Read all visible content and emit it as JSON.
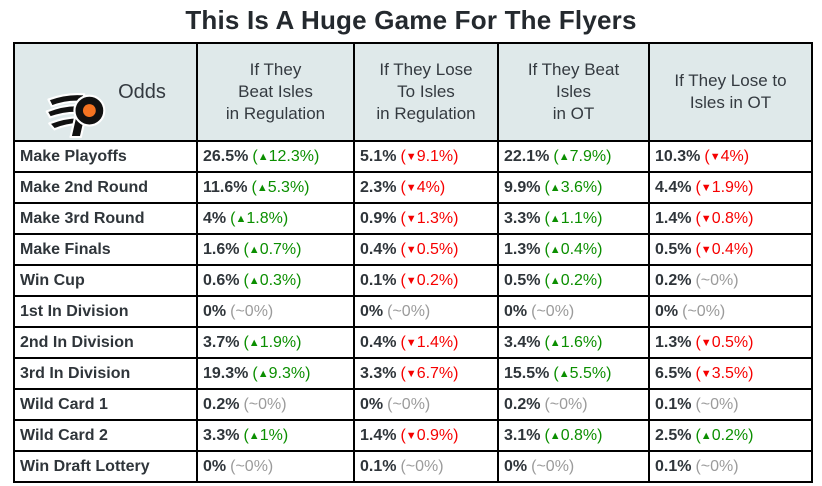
{
  "colors": {
    "header_bg": "#dfe9ea",
    "up_green": "#0b8f00",
    "down_red": "#f60000",
    "flat_gray": "#9b9b9b",
    "text_dark": "#2f353a",
    "border_black": "#000000",
    "logo_orange": "#f47321",
    "logo_black": "#111111"
  },
  "icons": {
    "up_arrow": "▲",
    "down_arrow": "▼",
    "flat_prefix": "~",
    "team_logo": "philadelphia-flyers-logo"
  },
  "chart_data": {
    "type": "table",
    "title": "This Is A Huge Game For The Flyers",
    "corner_label": "Odds",
    "columns": [
      "If They\nBeat Isles\nin Regulation",
      "If They Lose\nTo Isles\nin Regulation",
      "If They Beat\nIsles\nin OT",
      "If They Lose to\nIsles in OT"
    ],
    "rows": [
      {
        "label": "Make Playoffs",
        "cells": [
          {
            "value": "26.5%",
            "dir": "up",
            "change": "12.3%"
          },
          {
            "value": "5.1%",
            "dir": "down",
            "change": "9.1%"
          },
          {
            "value": "22.1%",
            "dir": "up",
            "change": "7.9%"
          },
          {
            "value": "10.3%",
            "dir": "down",
            "change": "4%"
          }
        ]
      },
      {
        "label": "Make 2nd Round",
        "cells": [
          {
            "value": "11.6%",
            "dir": "up",
            "change": "5.3%"
          },
          {
            "value": "2.3%",
            "dir": "down",
            "change": "4%"
          },
          {
            "value": "9.9%",
            "dir": "up",
            "change": "3.6%"
          },
          {
            "value": "4.4%",
            "dir": "down",
            "change": "1.9%"
          }
        ]
      },
      {
        "label": "Make 3rd Round",
        "cells": [
          {
            "value": "4%",
            "dir": "up",
            "change": "1.8%"
          },
          {
            "value": "0.9%",
            "dir": "down",
            "change": "1.3%"
          },
          {
            "value": "3.3%",
            "dir": "up",
            "change": "1.1%"
          },
          {
            "value": "1.4%",
            "dir": "down",
            "change": "0.8%"
          }
        ]
      },
      {
        "label": "Make Finals",
        "cells": [
          {
            "value": "1.6%",
            "dir": "up",
            "change": "0.7%"
          },
          {
            "value": "0.4%",
            "dir": "down",
            "change": "0.5%"
          },
          {
            "value": "1.3%",
            "dir": "up",
            "change": "0.4%"
          },
          {
            "value": "0.5%",
            "dir": "down",
            "change": "0.4%"
          }
        ]
      },
      {
        "label": "Win Cup",
        "cells": [
          {
            "value": "0.6%",
            "dir": "up",
            "change": "0.3%"
          },
          {
            "value": "0.1%",
            "dir": "down",
            "change": "0.2%"
          },
          {
            "value": "0.5%",
            "dir": "up",
            "change": "0.2%"
          },
          {
            "value": "0.2%",
            "dir": "flat",
            "change": "0%"
          }
        ]
      },
      {
        "label": "1st In Division",
        "cells": [
          {
            "value": "0%",
            "dir": "flat",
            "change": "0%"
          },
          {
            "value": "0%",
            "dir": "flat",
            "change": "0%"
          },
          {
            "value": "0%",
            "dir": "flat",
            "change": "0%"
          },
          {
            "value": "0%",
            "dir": "flat",
            "change": "0%"
          }
        ]
      },
      {
        "label": "2nd In Division",
        "cells": [
          {
            "value": "3.7%",
            "dir": "up",
            "change": "1.9%"
          },
          {
            "value": "0.4%",
            "dir": "down",
            "change": "1.4%"
          },
          {
            "value": "3.4%",
            "dir": "up",
            "change": "1.6%"
          },
          {
            "value": "1.3%",
            "dir": "down",
            "change": "0.5%"
          }
        ]
      },
      {
        "label": "3rd In Division",
        "cells": [
          {
            "value": "19.3%",
            "dir": "up",
            "change": "9.3%"
          },
          {
            "value": "3.3%",
            "dir": "down",
            "change": "6.7%"
          },
          {
            "value": "15.5%",
            "dir": "up",
            "change": "5.5%"
          },
          {
            "value": "6.5%",
            "dir": "down",
            "change": "3.5%"
          }
        ]
      },
      {
        "label": "Wild Card 1",
        "cells": [
          {
            "value": "0.2%",
            "dir": "flat",
            "change": "0%"
          },
          {
            "value": "0%",
            "dir": "flat",
            "change": "0%"
          },
          {
            "value": "0.2%",
            "dir": "flat",
            "change": "0%"
          },
          {
            "value": "0.1%",
            "dir": "flat",
            "change": "0%"
          }
        ]
      },
      {
        "label": "Wild Card 2",
        "cells": [
          {
            "value": "3.3%",
            "dir": "up",
            "change": "1%"
          },
          {
            "value": "1.4%",
            "dir": "down",
            "change": "0.9%"
          },
          {
            "value": "3.1%",
            "dir": "up",
            "change": "0.8%"
          },
          {
            "value": "2.5%",
            "dir": "up",
            "change": "0.2%"
          }
        ]
      },
      {
        "label": "Win Draft Lottery",
        "cells": [
          {
            "value": "0%",
            "dir": "flat",
            "change": "0%"
          },
          {
            "value": "0.1%",
            "dir": "flat",
            "change": "0%"
          },
          {
            "value": "0%",
            "dir": "flat",
            "change": "0%"
          },
          {
            "value": "0.1%",
            "dir": "flat",
            "change": "0%"
          }
        ]
      }
    ]
  }
}
